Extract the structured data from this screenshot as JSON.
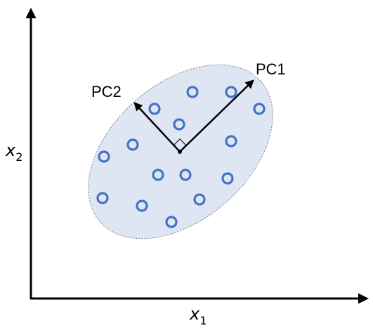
{
  "labels": {
    "pc1": "PC1",
    "pc2": "PC2"
  },
  "axes": {
    "x": {
      "symbol": "x",
      "subscript": "1"
    },
    "y": {
      "symbol": "x",
      "subscript": "2"
    }
  }
}
